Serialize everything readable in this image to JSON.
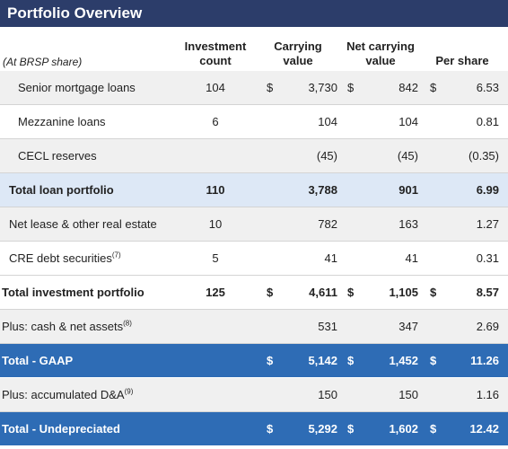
{
  "header": {
    "title": "Portfolio Overview"
  },
  "table": {
    "subheader": "(At BRSP share)",
    "columns": [
      [
        "Investment",
        "count"
      ],
      [
        "Carrying",
        "value"
      ],
      [
        "Net carrying",
        "value"
      ],
      [
        "Per share"
      ]
    ],
    "rows": [
      {
        "style": "sub",
        "fill": "#f0f0f0",
        "cells": [
          "Senior mortgage loans",
          "104",
          "$",
          "3,730",
          "$",
          "842",
          "$",
          "6.53"
        ]
      },
      {
        "style": "sub",
        "fill": "#ffffff",
        "cells": [
          "Mezzanine loans",
          "6",
          null,
          "104",
          null,
          "104",
          null,
          "0.81"
        ]
      },
      {
        "style": "sub",
        "fill": "#f0f0f0",
        "cells": [
          "CECL reserves",
          null,
          null,
          "(45)",
          null,
          "(45)",
          null,
          "(0.35)"
        ]
      },
      {
        "style": "subtotal",
        "fill": "#dde8f6",
        "cells": [
          "Total loan portfolio",
          "110",
          null,
          "3,788",
          null,
          "901",
          null,
          "6.99"
        ]
      },
      {
        "style": "item",
        "fill": "#f0f0f0",
        "cells": [
          "Net lease & other real estate",
          "10",
          null,
          "782",
          null,
          "163",
          null,
          "1.27"
        ]
      },
      {
        "style": "item",
        "fill": "#ffffff",
        "note": "(7)",
        "cells": [
          "CRE debt securities",
          "5",
          null,
          "41",
          null,
          "41",
          null,
          "0.31"
        ]
      },
      {
        "style": "total",
        "fill": "#ffffff",
        "cells": [
          "Total investment portfolio",
          "125",
          "$",
          "4,611",
          "$",
          "1,105",
          "$",
          "8.57"
        ]
      },
      {
        "style": "plain",
        "fill": "#f0f0f0",
        "note": "(8)",
        "cells": [
          "Plus: cash & net assets",
          null,
          null,
          "531",
          null,
          "347",
          null,
          "2.69"
        ]
      },
      {
        "style": "band",
        "fill": "#2e6cb5",
        "cells": [
          "Total - GAAP",
          null,
          "$",
          "5,142",
          "$",
          "1,452",
          "$",
          "11.26"
        ]
      },
      {
        "style": "plain",
        "fill": "#f0f0f0",
        "note": "(9)",
        "cells": [
          "Plus: accumulated D&A",
          null,
          null,
          "150",
          null,
          "150",
          null,
          "1.16"
        ]
      },
      {
        "style": "band",
        "fill": "#2e6cb5",
        "cells": [
          "Total - Undepreciated",
          null,
          "$",
          "5,292",
          "$",
          "1,602",
          "$",
          "12.42"
        ]
      }
    ]
  }
}
